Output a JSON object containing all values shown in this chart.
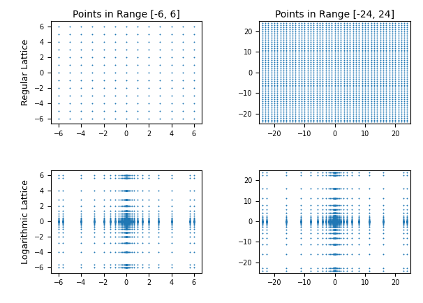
{
  "title_left": "Points in Range [-6, 6]",
  "title_right": "Points in Range [-24, 24]",
  "ylabel_top": "Regular Lattice",
  "ylabel_bottom": "Logarithmic Lattice",
  "regular_range_small": 6,
  "regular_range_large": 24,
  "dot_color": "#1f77b4",
  "dot_size": 2.0,
  "title_fontsize": 10,
  "label_fontsize": 9,
  "tick_fontsize": 7,
  "log_min_exp_num": -14,
  "log_step_denom": 2
}
